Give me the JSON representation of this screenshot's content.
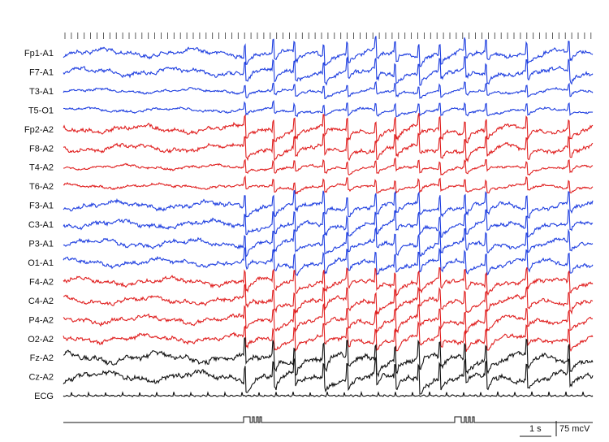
{
  "chart_data": {
    "type": "line",
    "title": "",
    "xlabel": "",
    "ylabel": "",
    "grid": false,
    "legend": "none",
    "time_scale_bar": {
      "label": "1 s",
      "value": 1,
      "unit": "s"
    },
    "amplitude_scale_bar": {
      "label": "75 mcV",
      "value": 75,
      "unit": "mcV"
    },
    "series": [
      {
        "label": "Fp1-A1",
        "color": "#1f3fe0",
        "group": "left"
      },
      {
        "label": "F7-A1",
        "color": "#1f3fe0",
        "group": "left"
      },
      {
        "label": "T3-A1",
        "color": "#1f3fe0",
        "group": "left"
      },
      {
        "label": "T5-O1",
        "color": "#1f3fe0",
        "group": "left"
      },
      {
        "label": "Fp2-A2",
        "color": "#e01f1f",
        "group": "right"
      },
      {
        "label": "F8-A2",
        "color": "#e01f1f",
        "group": "right"
      },
      {
        "label": "T4-A2",
        "color": "#e01f1f",
        "group": "right"
      },
      {
        "label": "T6-A2",
        "color": "#e01f1f",
        "group": "right"
      },
      {
        "label": "F3-A1",
        "color": "#1f3fe0",
        "group": "left"
      },
      {
        "label": "C3-A1",
        "color": "#1f3fe0",
        "group": "left"
      },
      {
        "label": "P3-A1",
        "color": "#1f3fe0",
        "group": "left"
      },
      {
        "label": "O1-A1",
        "color": "#1f3fe0",
        "group": "left"
      },
      {
        "label": "F4-A2",
        "color": "#e01f1f",
        "group": "right"
      },
      {
        "label": "C4-A2",
        "color": "#e01f1f",
        "group": "right"
      },
      {
        "label": "P4-A2",
        "color": "#e01f1f",
        "group": "right"
      },
      {
        "label": "O2-A2",
        "color": "#e01f1f",
        "group": "right"
      },
      {
        "label": "Fz-A2",
        "color": "#111111",
        "group": "midline"
      },
      {
        "label": "Cz-A2",
        "color": "#111111",
        "group": "midline"
      },
      {
        "label": "ECG",
        "color": "#111111",
        "group": "ecg"
      }
    ]
  }
}
